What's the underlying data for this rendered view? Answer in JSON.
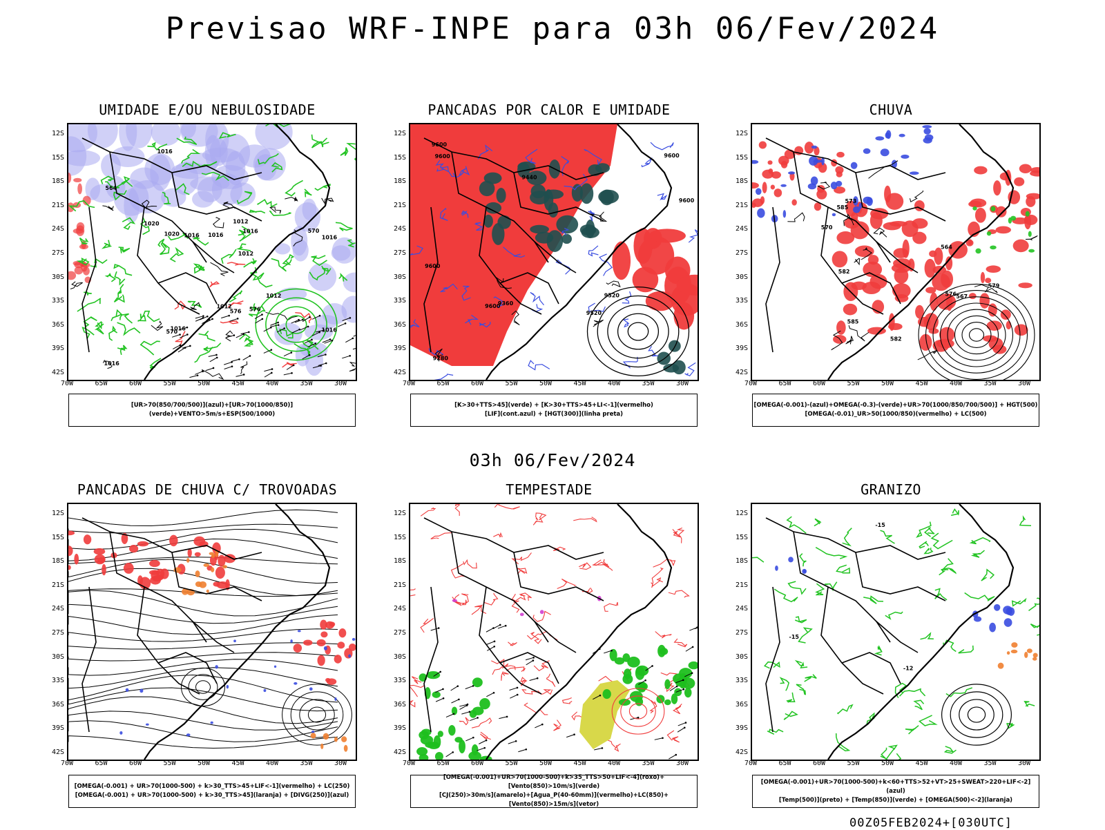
{
  "header": {
    "title": "Previsao WRF-INPE  para 03h 06/Fev/2024"
  },
  "middle_label": "03h 06/Fev/2024",
  "footer_label": "00Z05FEB2024+[030UTC]",
  "axes": {
    "lat_labels": [
      "12S",
      "15S",
      "18S",
      "21S",
      "24S",
      "27S",
      "30S",
      "33S",
      "36S",
      "39S",
      "42S"
    ],
    "lon_labels": [
      "70W",
      "65W",
      "60W",
      "55W",
      "50W",
      "45W",
      "40W",
      "35W",
      "30W"
    ]
  },
  "colors": {
    "humidity_blue": "#a9a9f0",
    "humidity_green": "#22c322",
    "storm_red": "#f03c3c",
    "dark_teal": "#1f4f4f",
    "contour_blue": "#3a4de0",
    "orange": "#f08030",
    "yellow": "#d8d84a",
    "magenta": "#d040d0"
  },
  "panels": [
    {
      "title": "UMIDADE E/OU NEBULOSIDADE",
      "legend": [
        "[UR>70(850/700/500)](azul)+[UR>70(1000/850)](verde)+VENTO>5m/s+ESP(500/1000)"
      ],
      "labels": [
        "1016",
        "1016",
        "1016",
        "1020",
        "1012",
        "1016",
        "1012",
        "1016",
        "1016",
        "1012",
        "1012",
        "1016",
        "1020",
        "1016",
        "576",
        "570",
        "564",
        "576",
        "570"
      ]
    },
    {
      "title": "PANCADAS POR CALOR E UMIDADE",
      "legend": [
        "[K>30+TTS>45](verde) + [K>30+TTS>45+LI<-1](vermelho)",
        "[LIF](cont.azul) + [HGT(300)](linha preta)"
      ],
      "labels": [
        "9600",
        "9600",
        "9600",
        "9600",
        "9600",
        "9520",
        "9440",
        "9360",
        "9280",
        "9520",
        "9600"
      ]
    },
    {
      "title": "CHUVA",
      "legend": [
        "[OMEGA(-0.001)-(azul)+OMEGA(-0.3)-(verde)+UR>70(1000/850/700/500)] + HGT(500)",
        "[OMEGA(-0.01)_UR>50(1000/850)(vermelho) + LC(500)"
      ],
      "labels": [
        "585",
        "582",
        "582",
        "579",
        "576",
        "573",
        "567",
        "564",
        "570",
        "585"
      ]
    },
    {
      "title": "PANCADAS DE CHUVA C/ TROVOADAS",
      "legend": [
        "[OMEGA(-0.001) + UR>70(1000-500) + k>30_TTS>45+LIF<-1](vermelho) + LC(250)",
        "[OMEGA(-0.001) + UR>70(1000-500) + k>30_TTS>45](laranja) + [DIVG(250)](azul)"
      ],
      "labels": []
    },
    {
      "title": "TEMPESTADE",
      "legend": [
        "[OMEGA(-0.001)+UR>70(1000-500)+k>35_TTS>50+LIF<-4](roxo)+[Vento(850)>10m/s](verde)",
        "[CJ(250)>30m/s](amarelo)+[Agua_P(40-60mm)](vermelho)+LC(850)+[Vento(850)>15m/s](vetor)"
      ],
      "labels": []
    },
    {
      "title": "GRANIZO",
      "legend": [
        "[OMEGA(-0.001)+UR>70(1000-500)+k<60+TTS>52+VT>25+SWEAT>220+LIF<-2](azul)",
        "[Temp(500)](preto) + [Temp(850)](verde) + [OMEGA(500)<-2](laranja)"
      ],
      "labels": [
        "-15",
        "-12",
        "-15"
      ]
    }
  ]
}
